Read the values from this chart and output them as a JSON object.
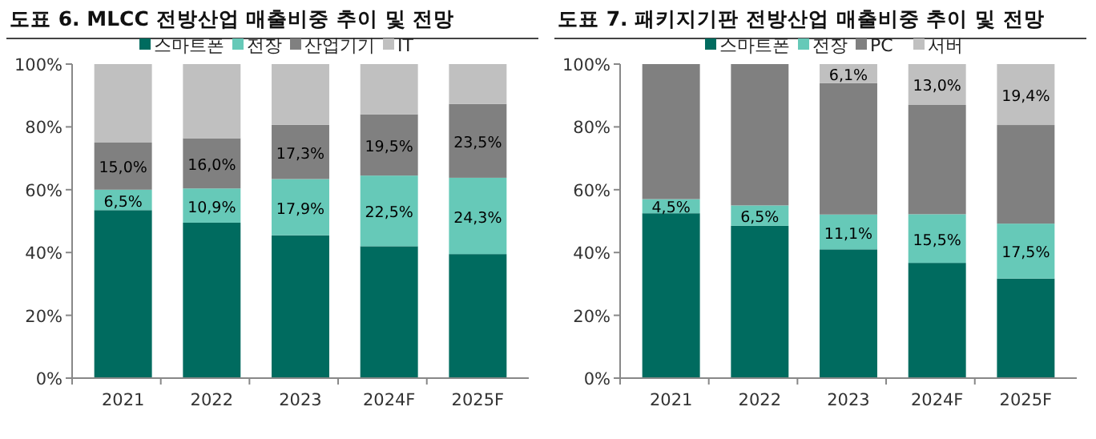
{
  "chart_data": [
    {
      "type": "bar",
      "title": "도표 6. MLCC 전방산업 매출비중 추이 및 전망",
      "categories": [
        "2021",
        "2022",
        "2023",
        "2024F",
        "2025F"
      ],
      "stacked": true,
      "legend": "top",
      "grid": false,
      "ylim": [
        0,
        100
      ],
      "yticks": [
        {
          "value": 0,
          "label": "0%"
        },
        {
          "value": 20,
          "label": "20%"
        },
        {
          "value": 40,
          "label": "40%"
        },
        {
          "value": 60,
          "label": "60%"
        },
        {
          "value": 80,
          "label": "80%"
        },
        {
          "value": 100,
          "label": "100%"
        }
      ],
      "series": [
        {
          "name": "스마트폰",
          "color": "#006b5f",
          "values": [
            53.5,
            49.5,
            45.5,
            42,
            39.5
          ]
        },
        {
          "name": "전장",
          "color": "#66c9b8",
          "values": [
            6.5,
            10.9,
            17.9,
            22.5,
            24.3
          ],
          "value_labels": [
            "6,5%",
            "10,9%",
            "17,9%",
            "22,5%",
            "24,3%"
          ]
        },
        {
          "name": "산업기기",
          "color": "#808080",
          "values": [
            15,
            16,
            17.3,
            19.5,
            23.5
          ],
          "value_labels": [
            "15,0%",
            "16,0%",
            "17,3%",
            "19,5%",
            "23,5%"
          ]
        },
        {
          "name": "IT",
          "color": "#c0c0c0",
          "values": [
            25,
            23.6,
            19.3,
            16,
            12.7
          ]
        }
      ]
    },
    {
      "type": "bar",
      "title": "도표 7. 패키지기판 전방산업 매출비중 추이 및 전망",
      "categories": [
        "2021",
        "2022",
        "2023",
        "2024F",
        "2025F"
      ],
      "stacked": true,
      "legend": "top",
      "grid": false,
      "ylim": [
        0,
        100
      ],
      "yticks": [
        {
          "value": 0,
          "label": "0%"
        },
        {
          "value": 20,
          "label": "20%"
        },
        {
          "value": 40,
          "label": "40%"
        },
        {
          "value": 60,
          "label": "60%"
        },
        {
          "value": 80,
          "label": "80%"
        },
        {
          "value": 100,
          "label": "100%"
        }
      ],
      "series": [
        {
          "name": "스마트폰",
          "color": "#006b5f",
          "values": [
            52.5,
            48.5,
            41,
            36.7,
            31.7
          ]
        },
        {
          "name": "전장",
          "color": "#66c9b8",
          "values": [
            4.5,
            6.5,
            11.1,
            15.5,
            17.5
          ],
          "value_labels": [
            "4,5%",
            "6,5%",
            "11,1%",
            "15,5%",
            "17,5%"
          ]
        },
        {
          "name": "PC",
          "color": "#808080",
          "values": [
            43,
            45,
            41.8,
            34.8,
            31.4
          ]
        },
        {
          "name": "서버",
          "color": "#c0c0c0",
          "values": [
            null,
            null,
            6.1,
            13,
            19.4
          ],
          "value_labels": [
            null,
            null,
            "6,1%",
            "13,0%",
            "19,4%"
          ]
        }
      ]
    }
  ]
}
